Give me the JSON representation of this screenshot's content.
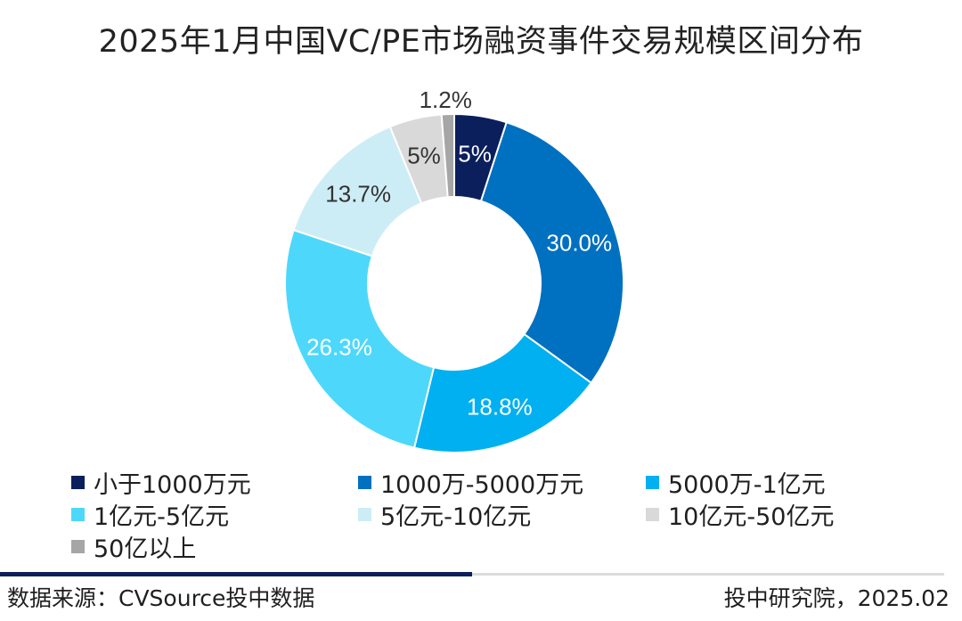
{
  "title": "2025年1月中国VC/PE市场融资事件交易规模区间分布",
  "chart_data": {
    "type": "pie",
    "title": "2025年1月中国VC/PE市场融资事件交易规模区间分布",
    "categories": [
      "小于1000万元",
      "1000万-5000万元",
      "5000万-1亿元",
      "1亿元-5亿元",
      "5亿元-10亿元",
      "10亿元-50亿元",
      "50亿以上"
    ],
    "values": [
      5.0,
      30.0,
      18.8,
      26.3,
      13.7,
      5.0,
      1.2
    ],
    "labels": [
      "5%",
      "30.0%",
      "18.8%",
      "26.3%",
      "13.7%",
      "5%",
      "1.2%"
    ],
    "colors": [
      "#0b1f5c",
      "#0070c0",
      "#00b0f0",
      "#4dd8fb",
      "#cdedf6",
      "#d9d9d9",
      "#a6a6a6"
    ],
    "label_colors": [
      "#ffffff",
      "#ffffff",
      "#ffffff",
      "#ffffff",
      "#333333",
      "#333333",
      "#333333"
    ],
    "donut": true,
    "legend_position": "bottom"
  },
  "footer": {
    "source": "数据来源：CVSource投中数据",
    "credit": "投中研究院，2025.02"
  }
}
